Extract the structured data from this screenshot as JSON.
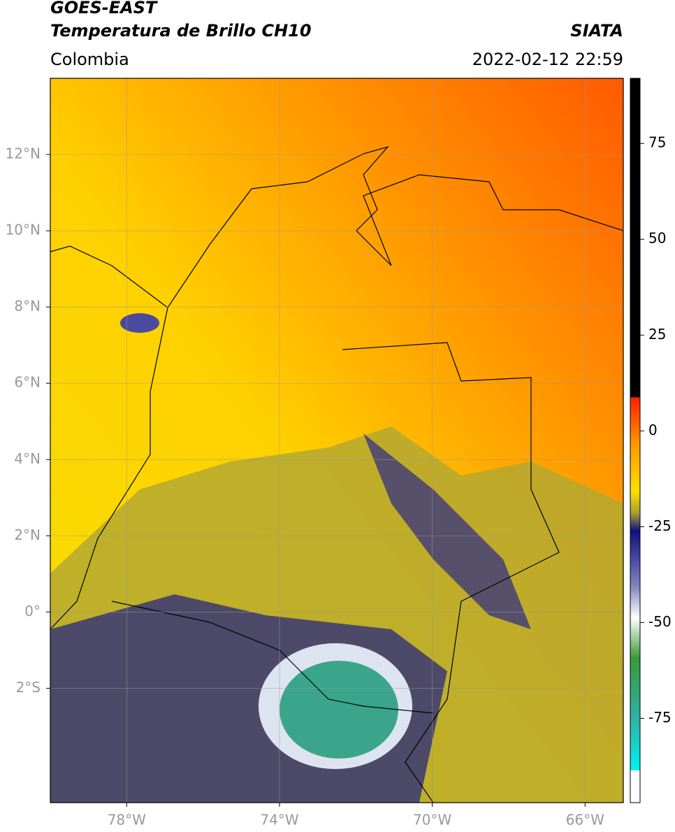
{
  "header": {
    "title": "GOES-EAST",
    "subtitle": "Temperatura de Brillo CH10",
    "region": "Colombia",
    "source": "SIATA",
    "datetime": "2022-02-12 22:59"
  },
  "map": {
    "xlim": [
      -80,
      -65
    ],
    "ylim": [
      -5,
      14
    ],
    "xticks": [
      {
        "value": -78,
        "label": "78°W"
      },
      {
        "value": -74,
        "label": "74°W"
      },
      {
        "value": -70,
        "label": "70°W"
      },
      {
        "value": -66,
        "label": "66°W"
      }
    ],
    "yticks": [
      {
        "value": 12,
        "label": "12°N"
      },
      {
        "value": 10,
        "label": "10°N"
      },
      {
        "value": 8,
        "label": "8°N"
      },
      {
        "value": 6,
        "label": "6°N"
      },
      {
        "value": 4,
        "label": "4°N"
      },
      {
        "value": 2,
        "label": "2°N"
      },
      {
        "value": 0,
        "label": "0°"
      },
      {
        "value": -2,
        "label": "2°S"
      }
    ],
    "grid": true
  },
  "colorbar": {
    "lim": [
      -97,
      92
    ],
    "ticks": [
      75,
      50,
      25,
      0,
      -25,
      -50,
      -75
    ]
  }
}
